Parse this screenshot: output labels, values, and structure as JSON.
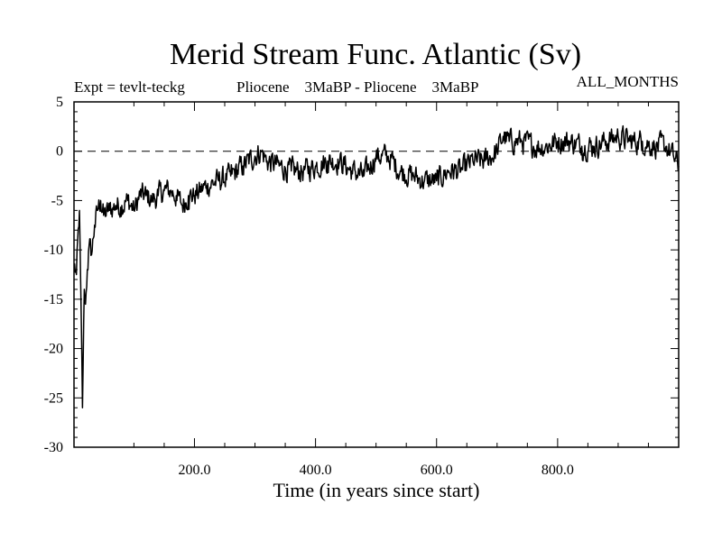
{
  "chart_data": {
    "type": "line",
    "title": "Merid Stream Func. Atlantic (Sv)",
    "experiment_label": "Expt = tevlt-teckg",
    "comparison_label": "Pliocene    3MaBP - Pliocene    3MaBP",
    "season_label": "ALL_MONTHS",
    "xlabel": "Time (in years since start)",
    "ylabel": "",
    "xlim": [
      1,
      1000
    ],
    "ylim": [
      -30,
      5
    ],
    "x_tick_labels": [
      "200.0",
      "400.0",
      "600.0",
      "800.0"
    ],
    "x_tick_values": [
      200,
      400,
      600,
      800
    ],
    "y_tick_labels": [
      "5",
      "0",
      "-5",
      "-10",
      "-15",
      "-20",
      "-25",
      "-30"
    ],
    "y_tick_values": [
      5,
      0,
      -5,
      -10,
      -15,
      -20,
      -25,
      -30
    ],
    "reference_line": {
      "y": 0,
      "style": "dashed"
    },
    "series": [
      {
        "name": "Merid Stream Func. Atlantic",
        "color": "#000000",
        "x": [
          1,
          5,
          10,
          15,
          18,
          20,
          23,
          26,
          30,
          35,
          40,
          45,
          50,
          60,
          70,
          80,
          90,
          100,
          110,
          120,
          130,
          140,
          150,
          160,
          170,
          180,
          190,
          200,
          220,
          240,
          260,
          280,
          300,
          310,
          320,
          340,
          360,
          380,
          400,
          420,
          440,
          460,
          480,
          500,
          520,
          540,
          560,
          580,
          600,
          620,
          640,
          660,
          680,
          700,
          710,
          720,
          740,
          760,
          780,
          800,
          820,
          840,
          860,
          880,
          900,
          920,
          940,
          960,
          980,
          1000
        ],
        "values": [
          -11.5,
          -12.5,
          -6,
          -26,
          -14,
          -15.5,
          -12,
          -9.5,
          -10.5,
          -7.5,
          -6,
          -5,
          -6.5,
          -6,
          -5.5,
          -5.5,
          -5,
          -6,
          -4.5,
          -4.5,
          -5,
          -4.5,
          -4,
          -4,
          -4.5,
          -5.5,
          -4.5,
          -4.5,
          -3.5,
          -3,
          -2.5,
          -1.5,
          -0.5,
          0,
          -1,
          -1.5,
          -2,
          -2,
          -1.5,
          -1,
          -1,
          -2,
          -2.5,
          -0.5,
          -0.5,
          -2,
          -2.5,
          -3,
          -3,
          -2,
          -2,
          -1,
          -1,
          0,
          1.5,
          1,
          1,
          0.5,
          0.5,
          1,
          1,
          0.5,
          0.5,
          1,
          1.5,
          1,
          1,
          0.5,
          0.5,
          -1.5
        ]
      }
    ]
  }
}
